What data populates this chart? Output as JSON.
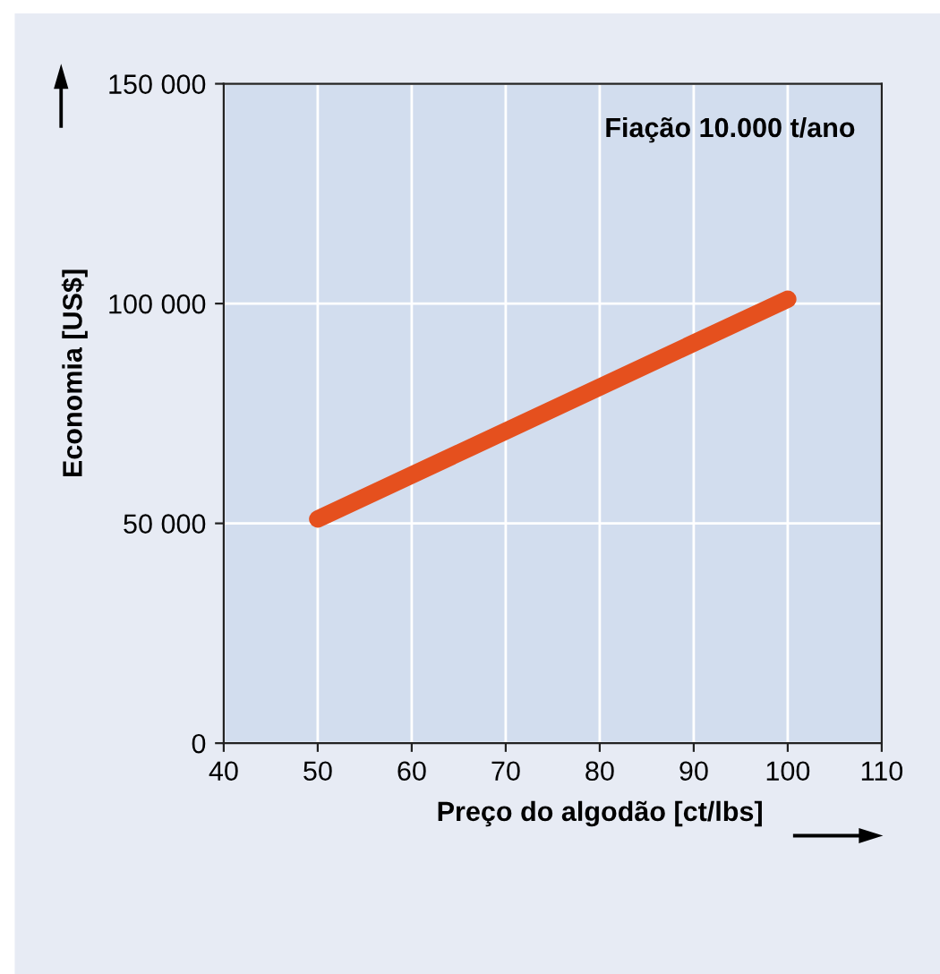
{
  "chart_data": {
    "type": "line",
    "xlabel": "Preço do algodão [ct/lbs]",
    "ylabel": "Economia [US$]",
    "annotations": [
      "Fiação 10.000 t/ano"
    ],
    "x": [
      50,
      100
    ],
    "series": [
      {
        "color": "#e5501e",
        "values": [
          51000,
          101000
        ]
      }
    ],
    "xlim": [
      40,
      110
    ],
    "xticks": [
      40,
      50,
      60,
      70,
      80,
      90,
      100,
      110
    ],
    "ylim": [
      0,
      150000
    ],
    "yticks": [
      {
        "value": 0,
        "label": "0"
      },
      {
        "value": 50000,
        "label": "50 000"
      },
      {
        "value": 100000,
        "label": "100 000"
      },
      {
        "value": 150000,
        "label": "150 000"
      }
    ],
    "grid": true,
    "marker": "none",
    "line_style": "solid"
  }
}
